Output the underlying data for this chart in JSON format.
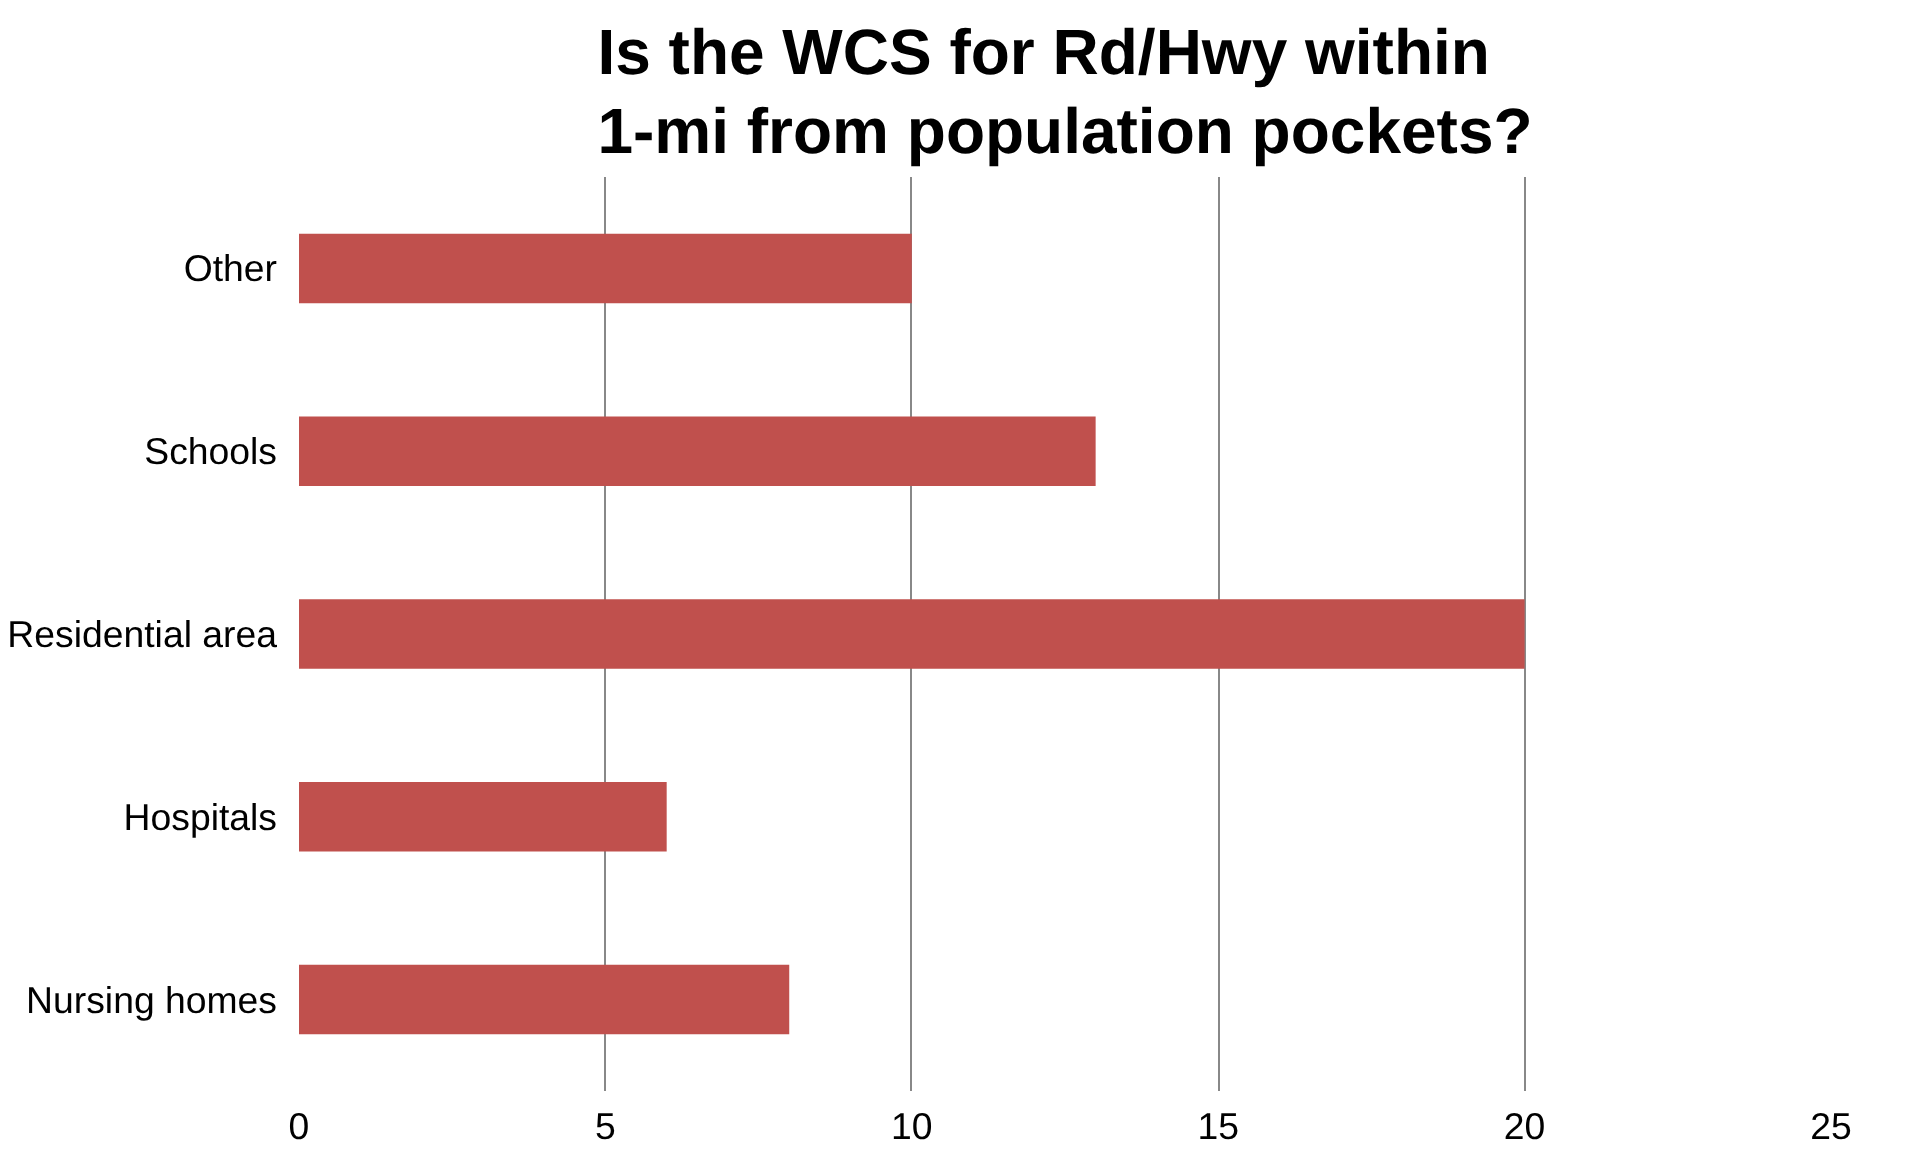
{
  "chart_data": {
    "type": "bar",
    "orientation": "horizontal",
    "title": "Is the WCS for Rd/Hwy within 1-mi from population pockets?",
    "categories": [
      "Other",
      "Schools",
      "Residential area",
      "Hospitals",
      "Nursing homes"
    ],
    "values": [
      10,
      13,
      20,
      6,
      8
    ],
    "color": "#c0504d",
    "xlim": [
      0,
      25
    ],
    "xticks": [
      0,
      5,
      10,
      15,
      20,
      25
    ],
    "grid": "x"
  }
}
